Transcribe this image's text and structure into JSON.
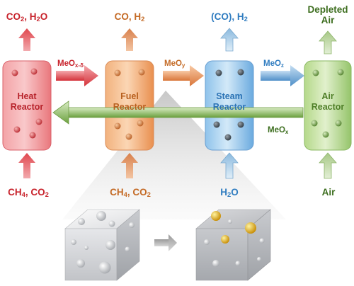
{
  "colors": {
    "heat": "#d9363e",
    "fuel": "#d97a3a",
    "steam": "#3b83c4",
    "air": "#6a9a3c",
    "dark": "#1a1a1a"
  },
  "reactors": [
    {
      "title": "Heat\nReactor",
      "key": "heat"
    },
    {
      "title": "Fuel\nReactor",
      "key": "fuel"
    },
    {
      "title": "Steam\nReactor",
      "key": "steam"
    },
    {
      "title": "Air\nReactor",
      "key": "air"
    }
  ],
  "labels": {
    "heat_out": [
      "CO",
      "2",
      ", H",
      "2",
      "O"
    ],
    "fuel_out": [
      "CO, H",
      "2",
      "",
      "",
      ""
    ],
    "steam_out": [
      "(CO), H",
      "2",
      "",
      "",
      ""
    ],
    "air_out": "Depleted\nAir",
    "heat_in": [
      "CH",
      "4",
      ",  CO",
      "2",
      ""
    ],
    "fuel_in": [
      "CH",
      "4",
      ",  CO",
      "2",
      ""
    ],
    "steam_in": [
      "H",
      "2",
      "O",
      "",
      ""
    ],
    "air_in": "Air",
    "meo_xd": [
      "MeO",
      "x-δ"
    ],
    "meo_y": [
      "MeO",
      "y"
    ],
    "meo_z": [
      "MeO",
      "z"
    ],
    "meo_x": [
      "MeO",
      "x"
    ]
  }
}
